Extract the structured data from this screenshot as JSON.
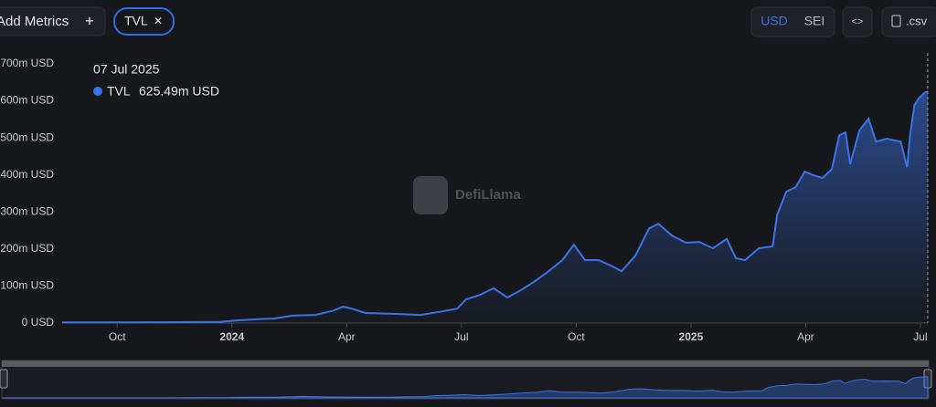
{
  "chart_data": {
    "type": "area",
    "x": [
      2023.63,
      2023.793,
      2023.973,
      2024.008,
      2024.052,
      2024.092,
      2024.132,
      2024.182,
      2024.222,
      2024.242,
      2024.261,
      2024.291,
      2024.351,
      2024.411,
      2024.451,
      2024.491,
      2024.51,
      2024.54,
      2024.57,
      2024.6,
      2024.63,
      2024.66,
      2024.69,
      2024.72,
      2024.745,
      2024.769,
      2024.799,
      2024.829,
      2024.849,
      2024.879,
      2024.909,
      2024.929,
      2024.959,
      2024.989,
      2025.018,
      2025.048,
      2025.078,
      2025.098,
      2025.118,
      2025.148,
      2025.178,
      2025.188,
      2025.208,
      2025.228,
      2025.248,
      2025.267,
      2025.287,
      2025.307,
      2025.323,
      2025.337,
      2025.347,
      2025.367,
      2025.387,
      2025.403,
      2025.427,
      2025.457,
      2025.471,
      2025.477,
      2025.487,
      2025.497,
      2025.51,
      2025.516
    ],
    "series": [
      {
        "name": "TVL",
        "color": "#3b74e8",
        "values": [
          2000000,
          2000000,
          3000000,
          7000000,
          10000000,
          12000000,
          20000000,
          22000000,
          34000000,
          44000000,
          39000000,
          27000000,
          25000000,
          22000000,
          30000000,
          39000000,
          64000000,
          76000000,
          94000000,
          69000000,
          89000000,
          113000000,
          140000000,
          170000000,
          212000000,
          170000000,
          170000000,
          153000000,
          140000000,
          182000000,
          256000000,
          268000000,
          236000000,
          217000000,
          219000000,
          202000000,
          227000000,
          175000000,
          170000000,
          202000000,
          207000000,
          293000000,
          355000000,
          367000000,
          409000000,
          399000000,
          392000000,
          416000000,
          507000000,
          515000000,
          429000000,
          520000000,
          552000000,
          490000000,
          498000000,
          490000000,
          421000000,
          502000000,
          589000000,
          608000000,
          623000000,
          625490000
        ]
      }
    ],
    "xlim": [
      2023.63,
      2025.516
    ],
    "xticks": [
      {
        "value": 2023.75,
        "label": "Oct"
      },
      2024,
      {
        "value": 2024.25,
        "label": "Apr"
      },
      {
        "value": 2024.5,
        "label": "Jul"
      },
      {
        "value": 2024.75,
        "label": "Oct"
      },
      2025,
      {
        "value": 2025.25,
        "label": "Apr"
      },
      {
        "value": 2025.5,
        "label": "Jul"
      }
    ],
    "ylim": [
      0,
      700000000
    ],
    "yticks": [
      {
        "value": 0,
        "label": "0 USD"
      },
      {
        "value": 100000000,
        "label": "100m USD"
      },
      {
        "value": 200000000,
        "label": "200m USD"
      },
      {
        "value": 300000000,
        "label": "300m USD"
      },
      {
        "value": 400000000,
        "label": "400m USD"
      },
      {
        "value": 500000000,
        "label": "500m USD"
      },
      {
        "value": 600000000,
        "label": "600m USD"
      },
      {
        "value": 700000000,
        "label": "700m USD"
      }
    ],
    "grid": false,
    "tooltip": {
      "date": "07 Jul 2025",
      "value": 625490000,
      "label": "625.49m USD"
    },
    "watermark": "DefiLlama"
  },
  "ui": {
    "add_metrics": "Add Metrics",
    "add_icon": "+",
    "remove_icon": "✕",
    "currencies": [
      "USD",
      "SEI"
    ],
    "embed": "<>",
    "csv": ".csv"
  }
}
